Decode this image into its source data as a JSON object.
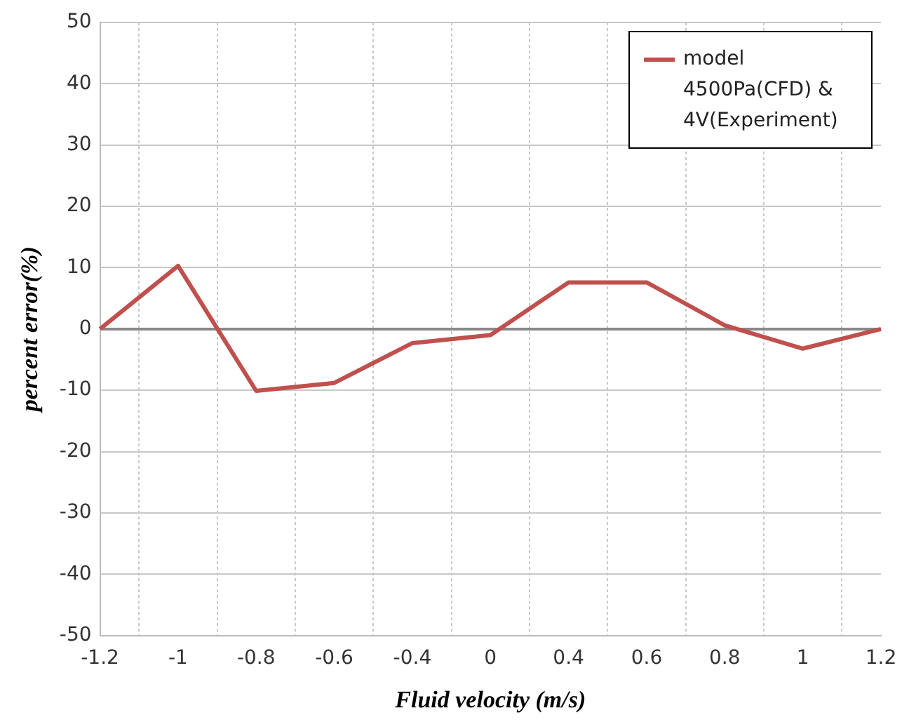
{
  "chart_data": {
    "type": "line",
    "xlabel": "Fluid velocity (m/s)",
    "ylabel": "percent error(%)",
    "categories": [
      "-1.2",
      "-1",
      "-0.8",
      "-0.6",
      "-0.4",
      "0",
      "0.4",
      "0.6",
      "0.8",
      "1",
      "1.2"
    ],
    "series": [
      {
        "name": "model 4500Pa(CFD) & 4V(Experiment)",
        "color": "#c0504d",
        "values": [
          0,
          10.3,
          -10.1,
          -8.8,
          -2.3,
          -1,
          7.6,
          7.6,
          0.6,
          -3.2,
          0
        ]
      }
    ],
    "ylim": [
      -50,
      50
    ],
    "yticks": [
      -50,
      -40,
      -30,
      -20,
      -10,
      0,
      10,
      20,
      30,
      40,
      50
    ],
    "grid": true,
    "legend": "top right",
    "marker": "none",
    "line_style": "solid"
  }
}
